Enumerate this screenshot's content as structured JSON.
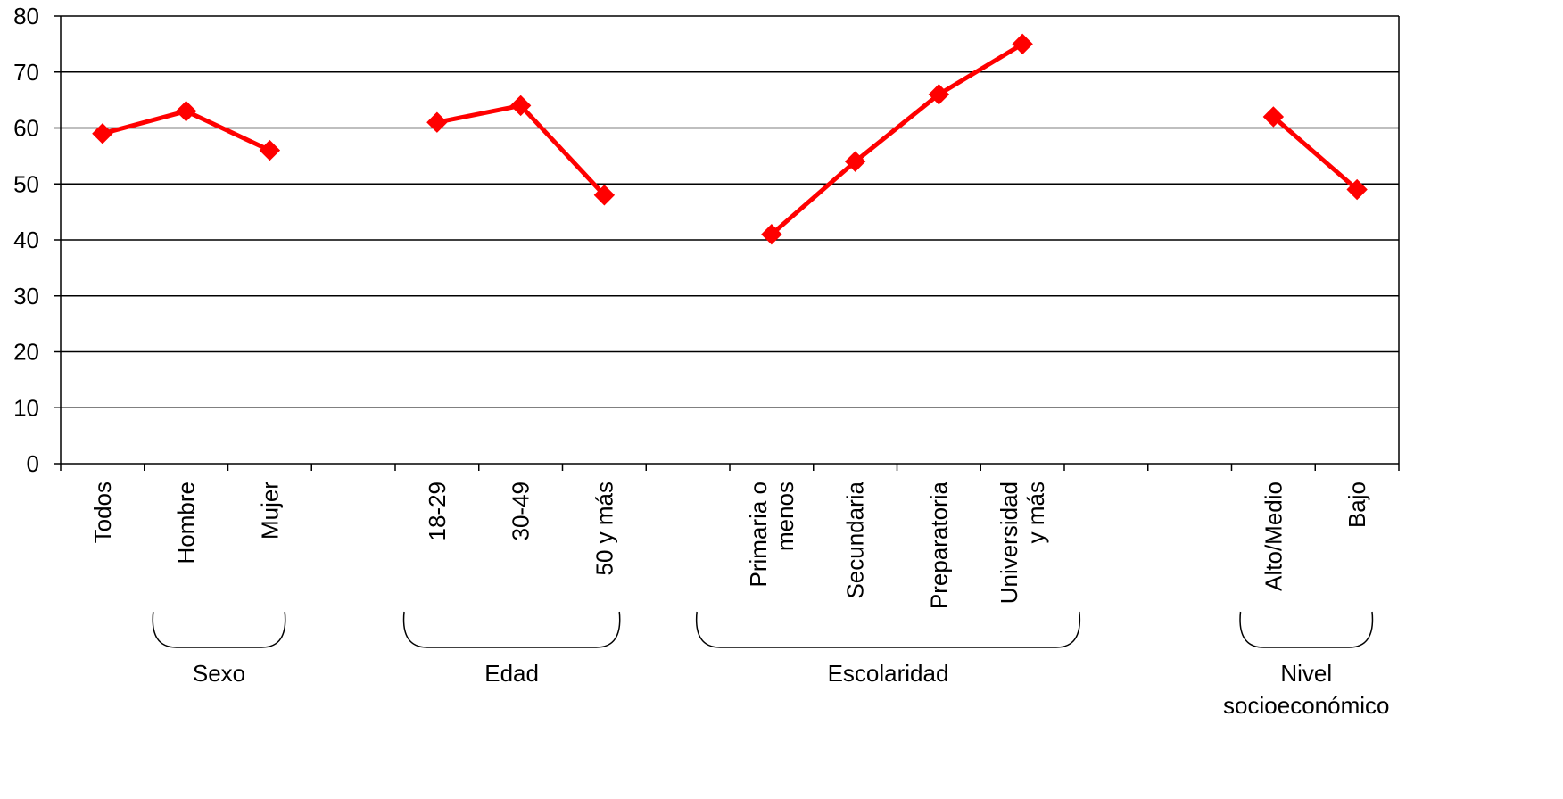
{
  "chart_data": {
    "type": "line",
    "title": "",
    "xlabel": "",
    "ylabel": "",
    "ylim": [
      0,
      80
    ],
    "yticks": [
      0,
      10,
      20,
      30,
      40,
      50,
      60,
      70,
      80
    ],
    "grid": true,
    "line_color": "#ff0000",
    "categories": [
      [
        "Todos"
      ],
      [
        "Hombre"
      ],
      [
        "Mujer"
      ],
      [],
      [
        "18-29"
      ],
      [
        "30-49"
      ],
      [
        "50 y más"
      ],
      [],
      [
        "Primaria o",
        "menos"
      ],
      [
        "Secundaria"
      ],
      [
        "Preparatoria"
      ],
      [
        "Universidad",
        "y más"
      ],
      [],
      [],
      [
        "Alto/Medio"
      ],
      [
        "Bajo"
      ]
    ],
    "segments": [
      {
        "indices": [
          0,
          1,
          2
        ],
        "values": [
          59,
          63,
          56
        ]
      },
      {
        "indices": [
          4,
          5,
          6
        ],
        "values": [
          61,
          64,
          48
        ]
      },
      {
        "indices": [
          8,
          9,
          10,
          11
        ],
        "values": [
          41,
          54,
          66,
          75
        ]
      },
      {
        "indices": [
          14,
          15
        ],
        "values": [
          62,
          49
        ]
      }
    ],
    "groups": [
      {
        "label": [
          "Sexo"
        ],
        "from": 1,
        "to": 2
      },
      {
        "label": [
          "Edad"
        ],
        "from": 4,
        "to": 6
      },
      {
        "label": [
          "Escolaridad"
        ],
        "from": 7.5,
        "to": 11.5
      },
      {
        "label": [
          "Nivel",
          "socioeconómico"
        ],
        "from": 14,
        "to": 15
      }
    ]
  }
}
